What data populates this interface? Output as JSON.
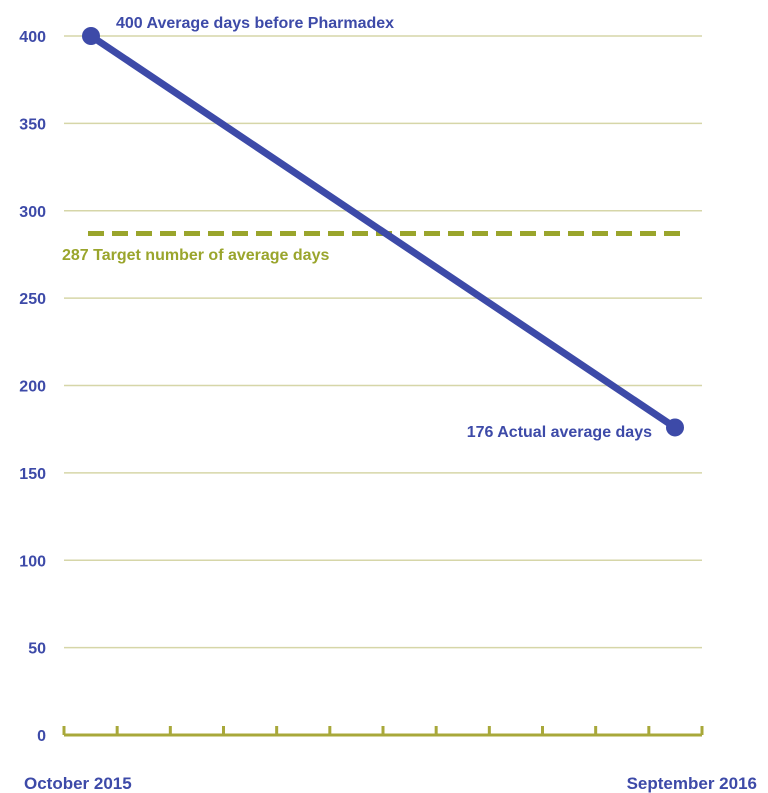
{
  "chart_data": {
    "type": "line",
    "title": "",
    "xlabel": "",
    "ylabel": "",
    "ylim": [
      0,
      400
    ],
    "yticks": [
      0,
      50,
      100,
      150,
      200,
      250,
      300,
      350,
      400
    ],
    "ytick_labels": [
      "0",
      "50",
      "100",
      "150",
      "200",
      "250",
      "300",
      "350",
      "400"
    ],
    "x_labels": [
      "October 2015",
      "September 2016"
    ],
    "grid": true,
    "series": [
      {
        "values": [
          400,
          176
        ],
        "color": "#3d4aa8"
      }
    ],
    "reference_line": {
      "value": 287,
      "style": "dashed",
      "color": "#9aa52c"
    },
    "annotations": {
      "start": "400 Average days before Pharmadex",
      "end": "176 Actual average days",
      "target": "287 Target number of average days"
    },
    "colors": {
      "series": "#3d4aa8",
      "target": "#9aa52c",
      "axis": "#a8a83a",
      "grid": "#d6d6a8",
      "tick_text": "#3d4aa8"
    }
  }
}
